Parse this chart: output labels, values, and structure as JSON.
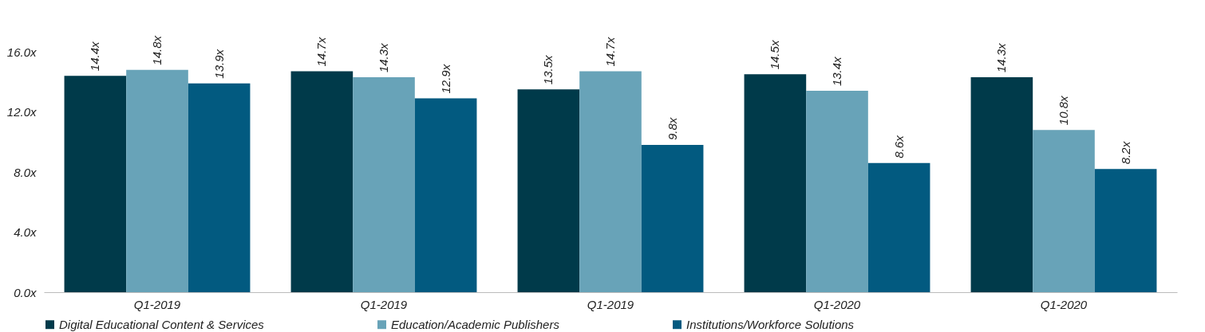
{
  "chart_data": {
    "type": "bar",
    "categories": [
      "Q1-2019",
      "Q1-2019",
      "Q1-2019",
      "Q1-2020",
      "Q1-2020"
    ],
    "series": [
      {
        "name": "Digital Educational Content & Services",
        "color": "#003a4a",
        "values": [
          14.4,
          14.7,
          13.5,
          14.5,
          14.3
        ],
        "value_labels": [
          "14.4x",
          "14.7x",
          "13.5x",
          "14.5x",
          "14.3x"
        ]
      },
      {
        "name": "Education/Academic Publishers",
        "color": "#68a3b8",
        "values": [
          14.8,
          14.3,
          14.7,
          13.4,
          10.8
        ],
        "value_labels": [
          "14.8x",
          "14.3x",
          "14.7x",
          "13.4x",
          "10.8x"
        ]
      },
      {
        "name": "Institutions/Workforce Solutions",
        "color": "#025a80",
        "values": [
          13.9,
          12.9,
          9.8,
          8.6,
          8.2
        ],
        "value_labels": [
          "13.9x",
          "12.9x",
          "9.8x",
          "8.6x",
          "8.2x"
        ]
      }
    ],
    "ylim": [
      0,
      16
    ],
    "yticks": [
      {
        "value": 0,
        "label": "0.0x"
      },
      {
        "value": 4,
        "label": "4.0x"
      },
      {
        "value": 8,
        "label": "8.0x"
      },
      {
        "value": 12,
        "label": "12.0x"
      },
      {
        "value": 16,
        "label": "16.0x"
      }
    ],
    "grid": false,
    "legend": "bottom"
  }
}
